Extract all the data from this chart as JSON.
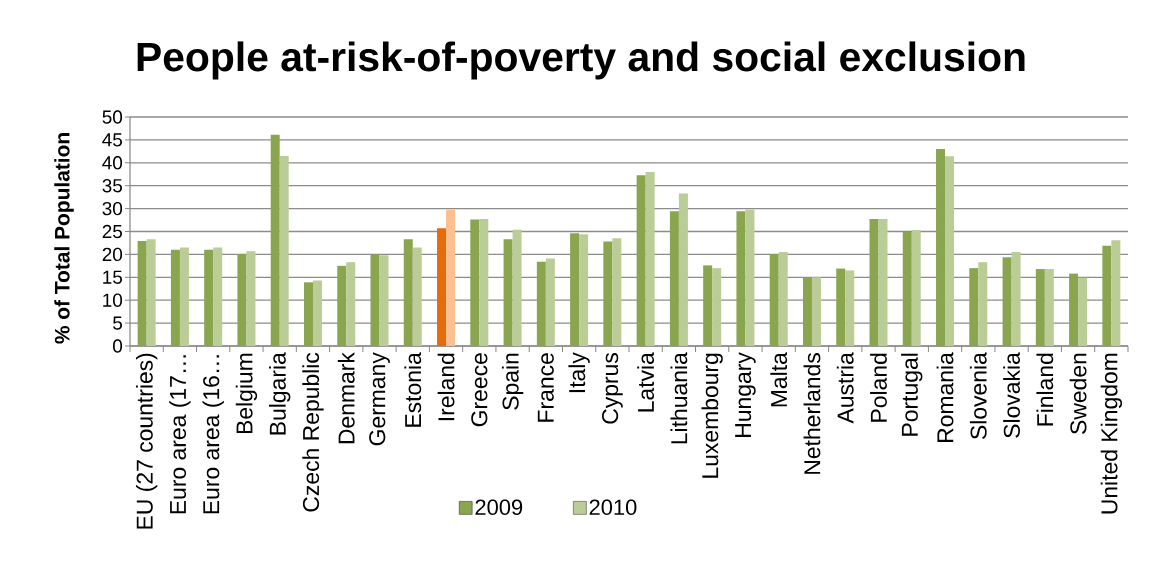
{
  "chart_data": {
    "type": "bar",
    "title": "People at-risk-of-poverty and social exclusion",
    "ylabel": "% of Total Population",
    "categories": [
      "EU (27 countries)",
      "Euro area (17…",
      "Euro area (16…",
      "Belgium",
      "Bulgaria",
      "Czech Republic",
      "Denmark",
      "Germany",
      "Estonia",
      "Ireland",
      "Greece",
      "Spain",
      "France",
      "Italy",
      "Cyprus",
      "Latvia",
      "Lithuania",
      "Luxembourg",
      "Hungary",
      "Malta",
      "Netherlands",
      "Austria",
      "Poland",
      "Portugal",
      "Romania",
      "Slovenia",
      "Slovakia",
      "Finland",
      "Sweden",
      "United Kingdom"
    ],
    "series": [
      {
        "name": "2009",
        "color": "#89a54e",
        "colors": [
          "#89a54e",
          "#89a54e",
          "#89a54e",
          "#89a54e",
          "#89a54e",
          "#89a54e",
          "#89a54e",
          "#89a54e",
          "#89a54e",
          "#e46c0a",
          "#89a54e",
          "#89a54e",
          "#89a54e",
          "#89a54e",
          "#89a54e",
          "#89a54e",
          "#89a54e",
          "#89a54e",
          "#89a54e",
          "#89a54e",
          "#89a54e",
          "#89a54e",
          "#89a54e",
          "#89a54e",
          "#89a54e",
          "#89a54e",
          "#89a54e",
          "#89a54e",
          "#89a54e",
          "#89a54e"
        ],
        "values": [
          22.9,
          21.0,
          21.0,
          20.1,
          46.1,
          13.9,
          17.5,
          20.0,
          23.3,
          25.7,
          27.6,
          23.3,
          18.4,
          24.6,
          22.8,
          37.3,
          29.4,
          17.6,
          29.4,
          20.1,
          15.0,
          16.9,
          27.7,
          24.9,
          43.0,
          17.0,
          19.4,
          16.8,
          15.8,
          21.9
        ]
      },
      {
        "name": "2010",
        "color": "#bacd96",
        "colors": [
          "#bacd96",
          "#bacd96",
          "#bacd96",
          "#bacd96",
          "#bacd96",
          "#bacd96",
          "#bacd96",
          "#bacd96",
          "#bacd96",
          "#fac090",
          "#bacd96",
          "#bacd96",
          "#bacd96",
          "#bacd96",
          "#bacd96",
          "#bacd96",
          "#bacd96",
          "#bacd96",
          "#bacd96",
          "#bacd96",
          "#bacd96",
          "#bacd96",
          "#bacd96",
          "#bacd96",
          "#bacd96",
          "#bacd96",
          "#bacd96",
          "#bacd96",
          "#bacd96",
          "#bacd96"
        ],
        "values": [
          23.3,
          21.5,
          21.5,
          20.7,
          41.5,
          14.3,
          18.3,
          19.8,
          21.5,
          29.8,
          27.7,
          25.4,
          19.1,
          24.4,
          23.5,
          38.0,
          33.3,
          17.0,
          29.8,
          20.5,
          15.0,
          16.5,
          27.7,
          25.3,
          41.4,
          18.3,
          20.5,
          16.8,
          14.9,
          23.1
        ]
      }
    ],
    "ylim": [
      0,
      50
    ],
    "yticks": [
      0,
      5,
      10,
      15,
      20,
      25,
      30,
      35,
      40,
      45,
      50
    ],
    "grid": "y",
    "legend": "bottom"
  }
}
